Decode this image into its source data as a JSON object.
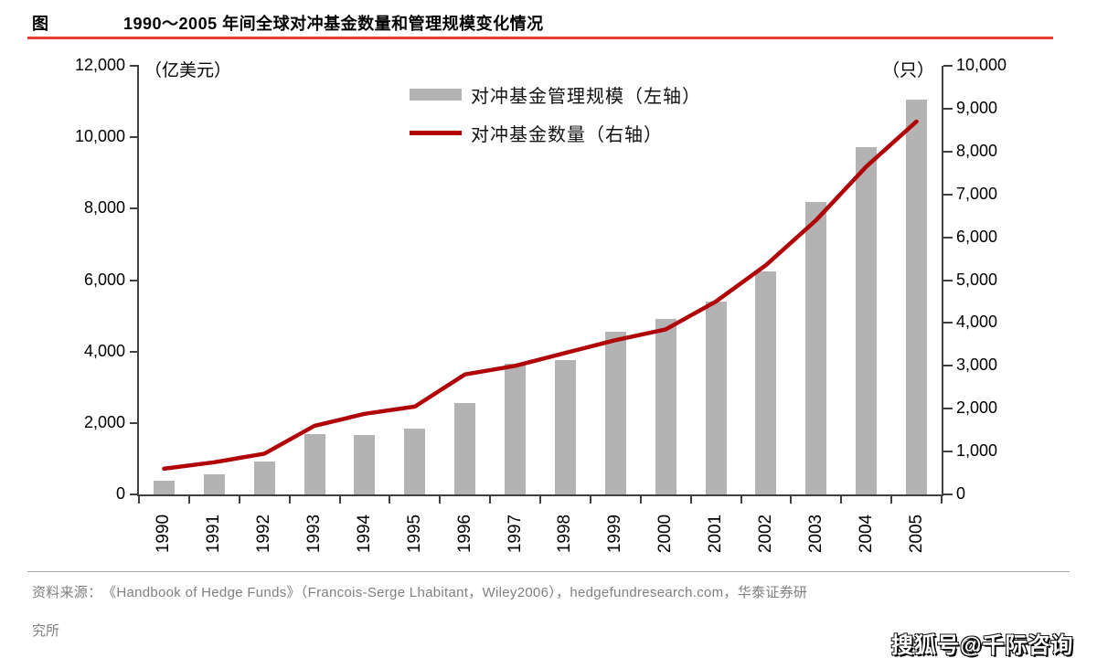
{
  "header": {
    "tag": "图",
    "title": "1990～2005 年间全球对冲基金数量和管理规模变化情况"
  },
  "chart_data": {
    "type": "bar+line",
    "title": "1990～2005 年间全球对冲基金数量和管理规模变化情况",
    "categories": [
      "1990",
      "1991",
      "1992",
      "1993",
      "1994",
      "1995",
      "1996",
      "1997",
      "1998",
      "1999",
      "2000",
      "2001",
      "2002",
      "2003",
      "2004",
      "2005"
    ],
    "series": [
      {
        "name": "对冲基金管理规模（左轴）",
        "type": "bar",
        "axis": "left",
        "color": "#b3b3b3",
        "values": [
          380,
          570,
          930,
          1680,
          1660,
          1850,
          2560,
          3670,
          3750,
          4560,
          4910,
          5390,
          6250,
          8200,
          9730,
          11050
        ]
      },
      {
        "name": "对冲基金数量（右轴）",
        "type": "line",
        "axis": "right",
        "color": "#b00406",
        "values": [
          600,
          750,
          950,
          1600,
          1880,
          2050,
          2800,
          3000,
          3300,
          3600,
          3850,
          4500,
          5350,
          6400,
          7650,
          8700
        ]
      }
    ],
    "left_axis": {
      "unit": "（亿美元）",
      "min": 0,
      "max": 12000,
      "step": 2000
    },
    "right_axis": {
      "unit": "（只）",
      "min": 0,
      "max": 10000,
      "step": 1000
    },
    "grid": false,
    "legend_position": "top-center"
  },
  "footer": {
    "source_label": "资料来源：",
    "source_body": "《Handbook of Hedge Funds》（Francois-Serge Lhabitant，Wiley2006），hedgefundresearch.com，华泰证券研",
    "source_line2": "究所",
    "watermark": "搜狐号@千际咨询"
  },
  "colors": {
    "bar": "#b3b3b3",
    "line": "#b00406",
    "title_rule": "#e8402c",
    "axis": "#404040",
    "footer_text": "#7f7f7f"
  }
}
